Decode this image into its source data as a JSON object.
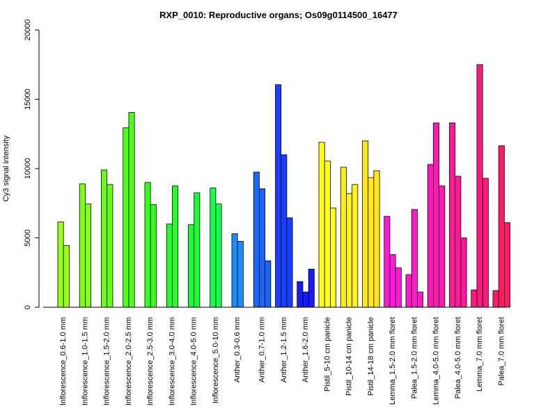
{
  "chart_data": {
    "type": "bar",
    "title": "RXP_0010: Reproductive organs; Os09g0114500_16477",
    "xlabel": "",
    "ylabel": "Cy3 signal intensity",
    "ylim": [
      0,
      20000
    ],
    "yticks": [
      0,
      5000,
      10000,
      15000,
      20000
    ],
    "grid": false,
    "categories": [
      {
        "label": "Inflorescence_0.6-1.0 mm",
        "values": [
          6150,
          4450
        ],
        "color": "#99ff1a"
      },
      {
        "label": "Inflorescence_1.0-1.5 mm",
        "values": [
          8900,
          7450
        ],
        "color": "#80ff1a"
      },
      {
        "label": "Inflorescence_1.5-2.0 mm",
        "values": [
          9900,
          8850
        ],
        "color": "#66ff1a"
      },
      {
        "label": "Inflorescence_2.0-2.5 mm",
        "values": [
          12950,
          14050
        ],
        "color": "#4dff1a"
      },
      {
        "label": "Inflorescence_2.5-3.0 mm",
        "values": [
          9000,
          7400
        ],
        "color": "#33ff1a"
      },
      {
        "label": "Inflorescence_3.0-4.0 mm",
        "values": [
          6000,
          8750
        ],
        "color": "#26ff26"
      },
      {
        "label": "Inflorescence_4.0-5.0 mm",
        "values": [
          5950,
          8250
        ],
        "color": "#1aff33"
      },
      {
        "label": "Inflorescence_5.0-10 mm",
        "values": [
          8600,
          7450
        ],
        "color": "#1aff4d"
      },
      {
        "label": "Anther_0.3-0.6 mm",
        "values": [
          5300,
          4750
        ],
        "color": "#1a8cff"
      },
      {
        "label": "Anther_0.7-1.0 mm",
        "values": [
          9750,
          8550,
          3350
        ],
        "color": "#1a66ff"
      },
      {
        "label": "Anther_1.2-1.5 mm",
        "values": [
          16050,
          11000,
          6450
        ],
        "color": "#1a40ff"
      },
      {
        "label": "Anther_1.6-2.0 mm",
        "values": [
          1850,
          1100,
          2750
        ],
        "color": "#1a1aff"
      },
      {
        "label": "Pistil_5-10 cm panicle",
        "values": [
          11900,
          10550,
          7150
        ],
        "color": "#ffff1a"
      },
      {
        "label": "Pistil_10-14 cm panicle",
        "values": [
          10100,
          8200,
          8850
        ],
        "color": "#fff01a"
      },
      {
        "label": "Pistil_14-18 cm panicle",
        "values": [
          12000,
          9350,
          9850
        ],
        "color": "#ffe61a"
      },
      {
        "label": "Lemma_1.5-2.0 mm floret",
        "values": [
          6550,
          3800,
          2850
        ],
        "color": "#ff1ad9"
      },
      {
        "label": "Palea_1.5-2.0 mm floret",
        "values": [
          2350,
          7050,
          1100
        ],
        "color": "#ff1acc"
      },
      {
        "label": "Lemma_4.0-5.0 mm floret",
        "values": [
          10300,
          13300,
          8750
        ],
        "color": "#ff1ab3"
      },
      {
        "label": "Palea_4.0-5.0 mm floret",
        "values": [
          13300,
          9450,
          5000
        ],
        "color": "#ff1a99"
      },
      {
        "label": "Lemma_7.0 mm floret",
        "values": [
          1250,
          17500,
          9300
        ],
        "color": "#ff1a80"
      },
      {
        "label": "Palea_7.0 mm floret",
        "values": [
          1200,
          11650,
          6100
        ],
        "color": "#ff1a66"
      }
    ]
  }
}
